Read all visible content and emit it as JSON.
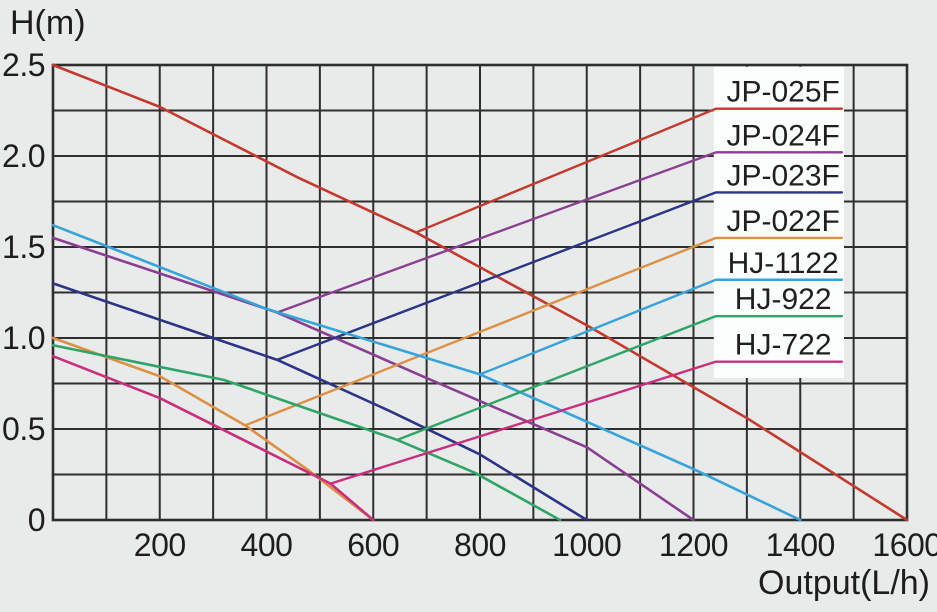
{
  "page": {
    "background": "#e9ebeb",
    "text_color": "#1d1d1d",
    "grid_color": "#2e2e2e"
  },
  "axis_titles": {
    "y": "H(m)",
    "x": "Output(L/h)"
  },
  "chart_data": {
    "type": "line",
    "title": "",
    "xlabel": "Output(L/h)",
    "ylabel": "H(m)",
    "xlim": [
      0,
      1600
    ],
    "ylim": [
      0,
      2.5
    ],
    "x_minor_step": 100,
    "y_minor_step": 0.25,
    "grid": true,
    "x_tick_values": [
      200,
      400,
      600,
      800,
      1000,
      1200,
      1400,
      1600
    ],
    "x_tick_labels": [
      "200",
      "400",
      "600",
      "800",
      "1000",
      "1200",
      "1400",
      "1600"
    ],
    "y_tick_values": [
      0,
      0.5,
      1.0,
      1.5,
      2.0,
      2.5
    ],
    "y_tick_labels": [
      "0",
      "0.5",
      "1.0",
      "1.5",
      "2.0",
      "2.5"
    ],
    "legend_position": "top-right",
    "legend_box": {
      "x0": 1238,
      "x1": 1482,
      "y0": 0.78,
      "y1": 2.49,
      "fill": "#fcfdfd"
    },
    "legend_line_x": [
      1242,
      1478
    ],
    "legend_label_x": 1368,
    "series": [
      {
        "name": "JP-025F",
        "color": "#c43a2c",
        "points": [
          [
            0,
            2.5
          ],
          [
            200,
            2.27
          ],
          [
            460,
            1.88
          ],
          [
            680,
            1.58
          ],
          [
            1000,
            1.07
          ],
          [
            1300,
            0.56
          ],
          [
            1600,
            0
          ]
        ],
        "callout_start": [
          680,
          1.58
        ],
        "legend_y": 2.26
      },
      {
        "name": "JP-024F",
        "color": "#8a3f92",
        "points": [
          [
            0,
            1.55
          ],
          [
            420,
            1.14
          ],
          [
            700,
            0.78
          ],
          [
            1000,
            0.4
          ],
          [
            1200,
            0
          ]
        ],
        "callout_start": [
          420,
          1.14
        ],
        "legend_y": 2.02
      },
      {
        "name": "JP-023F",
        "color": "#2b3487",
        "points": [
          [
            0,
            1.3
          ],
          [
            420,
            0.88
          ],
          [
            630,
            0.6
          ],
          [
            800,
            0.36
          ],
          [
            1000,
            0
          ]
        ],
        "callout_start": [
          420,
          0.88
        ],
        "legend_y": 1.8
      },
      {
        "name": "JP-022F",
        "color": "#dd9043",
        "points": [
          [
            0,
            1.0
          ],
          [
            200,
            0.79
          ],
          [
            360,
            0.52
          ],
          [
            480,
            0.27
          ],
          [
            600,
            0
          ]
        ],
        "callout_start": [
          360,
          0.52
        ],
        "legend_y": 1.55
      },
      {
        "name": "HJ-1122",
        "color": "#36a4d9",
        "points": [
          [
            0,
            1.62
          ],
          [
            400,
            1.16
          ],
          [
            800,
            0.8
          ],
          [
            1200,
            0.28
          ],
          [
            1400,
            0
          ]
        ],
        "callout_start": [
          800,
          0.8
        ],
        "legend_y": 1.32
      },
      {
        "name": "HJ-922",
        "color": "#2ea566",
        "points": [
          [
            0,
            0.96
          ],
          [
            320,
            0.77
          ],
          [
            645,
            0.44
          ],
          [
            790,
            0.26
          ],
          [
            950,
            0
          ]
        ],
        "callout_start": [
          645,
          0.44
        ],
        "legend_y": 1.12
      },
      {
        "name": "HJ-722",
        "color": "#c92f7d",
        "points": [
          [
            0,
            0.9
          ],
          [
            200,
            0.67
          ],
          [
            520,
            0.2
          ],
          [
            600,
            0
          ]
        ],
        "callout_start": [
          520,
          0.2
        ],
        "legend_y": 0.87
      }
    ]
  }
}
